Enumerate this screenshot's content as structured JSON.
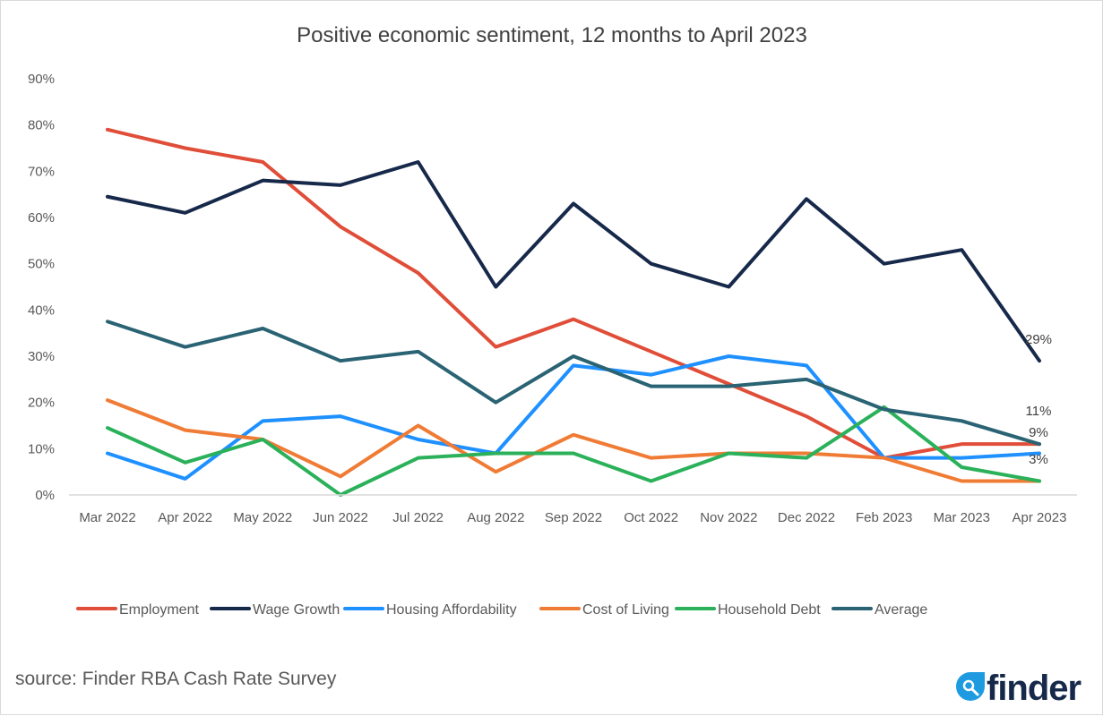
{
  "chart_data": {
    "type": "line",
    "title": "Positive economic sentiment, 12 months to April 2023",
    "categories": [
      "Mar 2022",
      "Apr 2022",
      "May 2022",
      "Jun 2022",
      "Jul 2022",
      "Aug 2022",
      "Sep 2022",
      "Oct 2022",
      "Nov 2022",
      "Dec 2022",
      "Feb 2023",
      "Mar 2023",
      "Apr 2023"
    ],
    "ylim": [
      0,
      90
    ],
    "yticks": [
      "0%",
      "10%",
      "20%",
      "30%",
      "40%",
      "50%",
      "60%",
      "70%",
      "80%",
      "90%"
    ],
    "grid": false,
    "legend_position": "bottom",
    "series": [
      {
        "name": "Employment",
        "color": "#e04e39",
        "values": [
          79,
          75,
          72,
          58,
          48,
          32,
          38,
          31,
          24,
          17,
          8,
          11,
          11
        ]
      },
      {
        "name": "Wage Growth",
        "color": "#17294a",
        "values": [
          64.5,
          61,
          68,
          67,
          72,
          45,
          63,
          50,
          45,
          64,
          50,
          53,
          29
        ]
      },
      {
        "name": "Housing Affordability",
        "color": "#1e90ff",
        "values": [
          9,
          3.5,
          16,
          17,
          12,
          9,
          28,
          26,
          30,
          28,
          8,
          8,
          9
        ]
      },
      {
        "name": "Cost of Living",
        "color": "#f07b35",
        "values": [
          20.5,
          14,
          12,
          4,
          15,
          5,
          13,
          8,
          9,
          9,
          8,
          3,
          3
        ]
      },
      {
        "name": "Household Debt",
        "color": "#2ab15a",
        "values": [
          14.5,
          7,
          12,
          0,
          8,
          9,
          9,
          3,
          9,
          8,
          19,
          6,
          3
        ]
      },
      {
        "name": "Average",
        "color": "#2a6373",
        "values": [
          37.5,
          32,
          36,
          29,
          31,
          20,
          30,
          23.5,
          23.5,
          25,
          18.5,
          16,
          11
        ]
      }
    ],
    "data_labels": [
      "29%",
      "11%",
      "9%",
      "3%"
    ]
  },
  "source": "source: Finder RBA Cash Rate Survey",
  "logo": {
    "text": "finder",
    "color": "#17294a",
    "accent": "#1e9be0",
    "icon": "search-icon"
  }
}
